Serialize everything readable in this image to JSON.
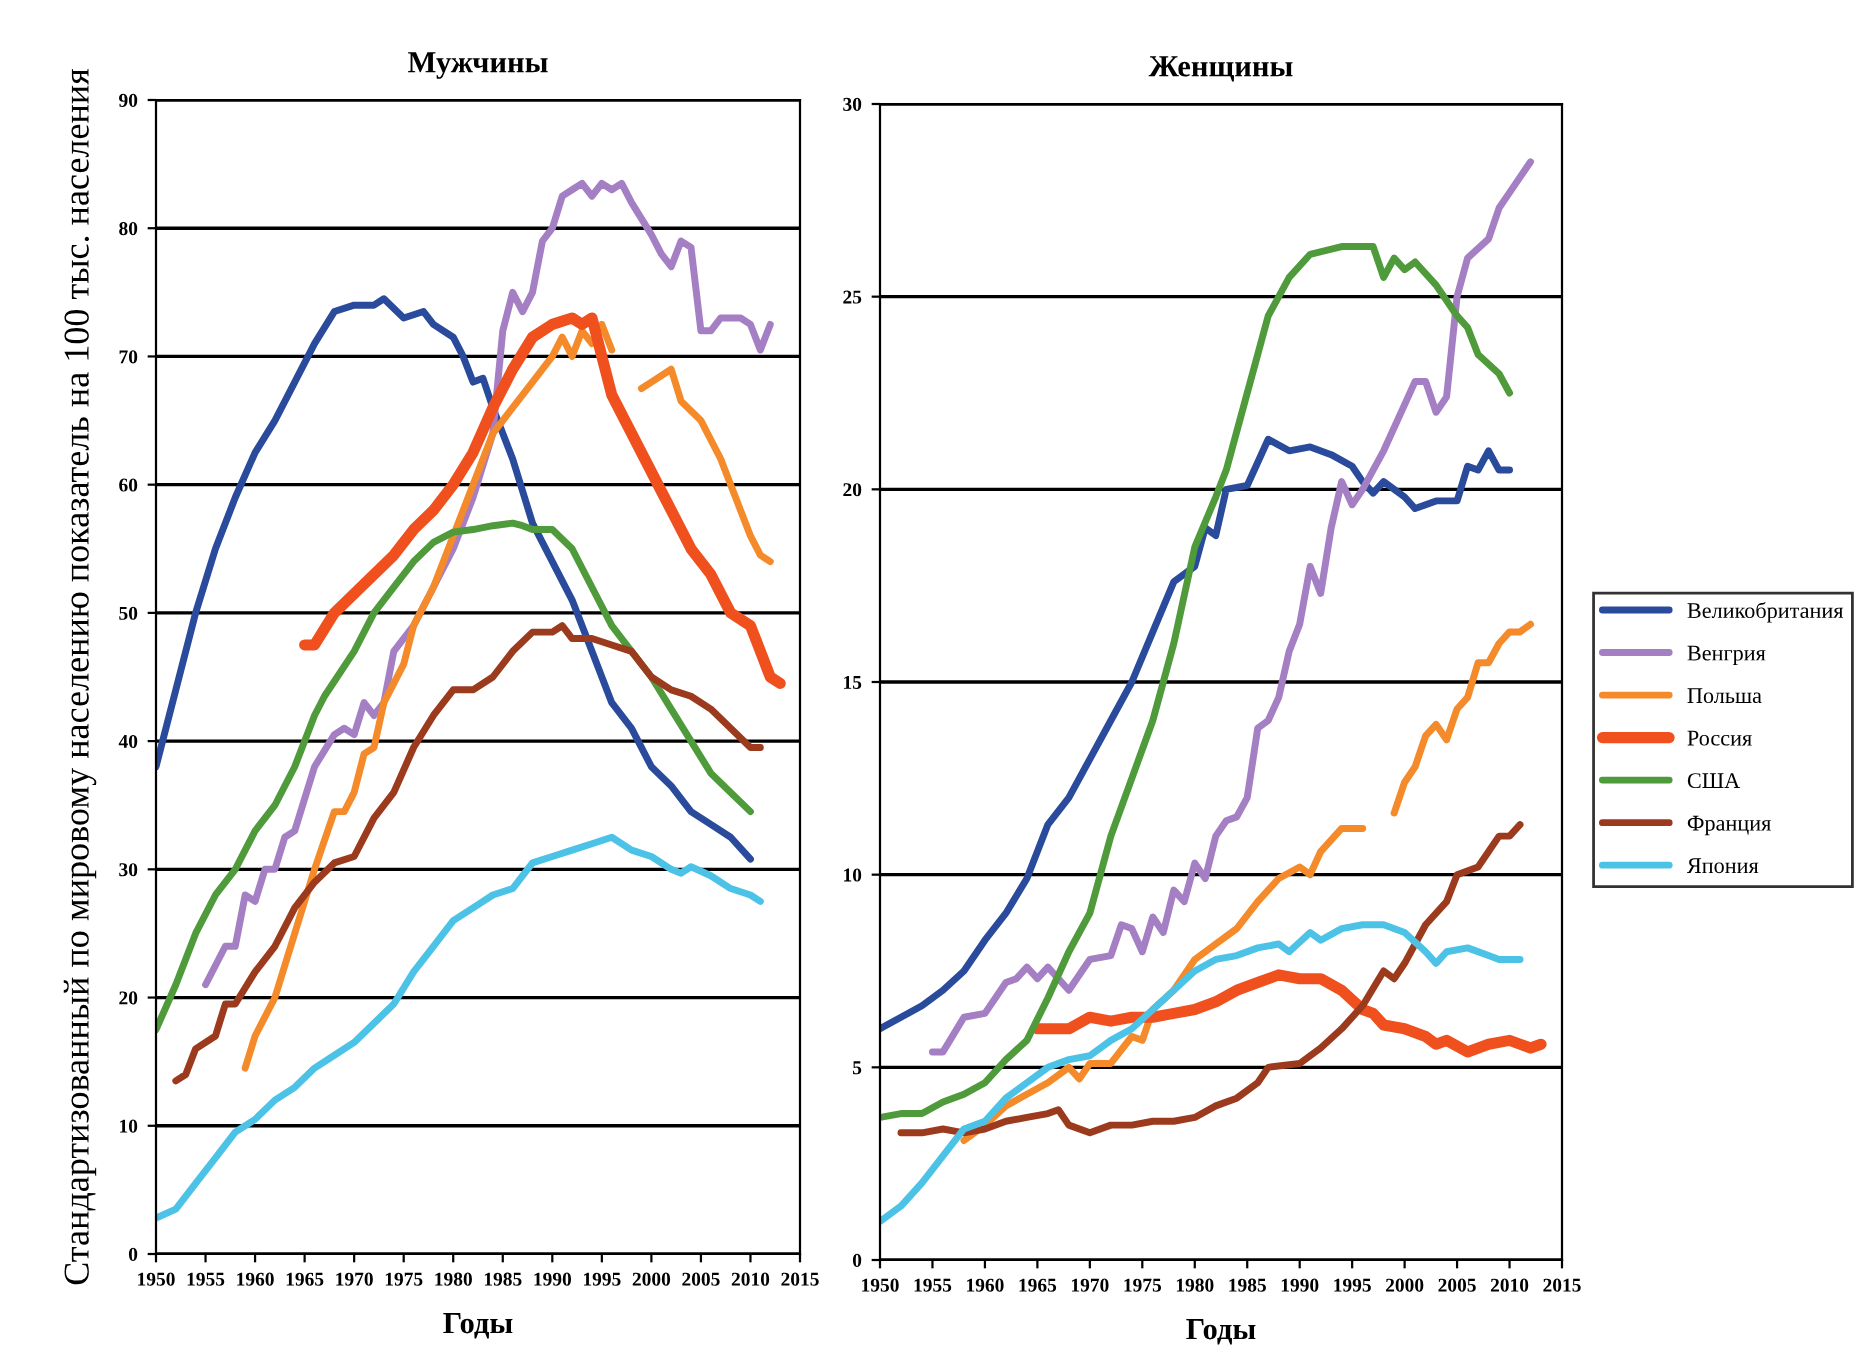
{
  "chart_data": [
    {
      "type": "line",
      "title": "Мужчины",
      "xlabel": "Годы",
      "ylabel": "Стандартизованный по мировому населению показатель на 100 тыс. населения",
      "xlim": [
        1950,
        2015
      ],
      "xticks": [
        1950,
        1955,
        1960,
        1965,
        1970,
        1975,
        1980,
        1985,
        1990,
        1995,
        2000,
        2005,
        2010,
        2015
      ],
      "ylim": [
        0,
        90
      ],
      "yticks": [
        0,
        10,
        20,
        30,
        40,
        50,
        60,
        70,
        80,
        90
      ],
      "grid": "y",
      "legend": false,
      "series": [
        {
          "color": "#2a4a9c",
          "x": [
            1950,
            1952,
            1954,
            1956,
            1958,
            1960,
            1962,
            1964,
            1966,
            1968,
            1970,
            1972,
            1973,
            1975,
            1977,
            1978,
            1980,
            1981,
            1982,
            1983,
            1984,
            1986,
            1988,
            1990,
            1992,
            1994,
            1995,
            1996,
            1998,
            2000,
            2002,
            2004,
            2006,
            2008,
            2010
          ],
          "values": [
            38,
            44,
            50,
            55,
            59,
            62.5,
            65,
            68,
            71,
            73.5,
            74,
            74,
            74.5,
            73,
            73.5,
            72.5,
            71.5,
            70,
            68,
            68.3,
            66,
            62,
            57,
            54,
            51,
            47,
            45,
            43,
            41,
            38,
            36.5,
            34.5,
            33.5,
            32.5,
            30.8
          ]
        },
        {
          "color": "#a57fc4",
          "x": [
            1955,
            1957,
            1958,
            1959,
            1960,
            1961,
            1962,
            1963,
            1964,
            1966,
            1968,
            1969,
            1970,
            1971,
            1972,
            1973,
            1974,
            1976,
            1978,
            1980,
            1982,
            1984,
            1985,
            1986,
            1987,
            1988,
            1989,
            1990,
            1991,
            1992,
            1993,
            1994,
            1995,
            1996,
            1997,
            1998,
            2000,
            2001,
            2002,
            2003,
            2004,
            2005,
            2006,
            2007,
            2009,
            2010,
            2011,
            2012
          ],
          "values": [
            21,
            24,
            24,
            28,
            27.5,
            30,
            30,
            32.5,
            33,
            38,
            40.5,
            41,
            40.5,
            43,
            42,
            43,
            47,
            49,
            52,
            55,
            59,
            64,
            72,
            75,
            73.5,
            75,
            79,
            80,
            82.5,
            83,
            83.5,
            82.5,
            83.5,
            83,
            83.5,
            82,
            79.5,
            78,
            77,
            79,
            78.5,
            72,
            72,
            73,
            73,
            72.5,
            70.5,
            72.5
          ]
        },
        {
          "color": "#f58a2a",
          "x": [
            1959,
            1960,
            1962,
            1964,
            1966,
            1968,
            1969,
            1970,
            1971,
            1972,
            1973,
            1975,
            1976,
            1978,
            1980,
            1982,
            1984,
            1986,
            1988,
            1990,
            1991,
            1992,
            1993,
            1994,
            1995,
            1996,
            1997,
            1999,
            2000,
            2002,
            2003,
            2005,
            2007,
            2008,
            2010,
            2011,
            2012
          ],
          "values": [
            14.5,
            17,
            20,
            25,
            30,
            34.5,
            34.5,
            36,
            39,
            39.5,
            43,
            46,
            49,
            52,
            56,
            60,
            64,
            66,
            68,
            70,
            71.5,
            70,
            72,
            71,
            72.5,
            70.5,
            null,
            67.5,
            68,
            69,
            66.5,
            65,
            62,
            60,
            56,
            54.5,
            54
          ]
        },
        {
          "color": "#f0501e",
          "x": [
            1965,
            1966,
            1968,
            1970,
            1972,
            1974,
            1976,
            1978,
            1980,
            1982,
            1984,
            1986,
            1988,
            1990,
            1992,
            1993,
            1994,
            1996,
            1998,
            2000,
            2002,
            2004,
            2006,
            2008,
            2010,
            2011,
            2012,
            2013
          ],
          "values": [
            47.5,
            47.5,
            50,
            51.5,
            53,
            54.5,
            56.5,
            58,
            60,
            62.5,
            66,
            69,
            71.5,
            72.5,
            73,
            72.5,
            73,
            67,
            64,
            61,
            58,
            55,
            53,
            50,
            49,
            47,
            45,
            44.5
          ]
        },
        {
          "color": "#4f9a3a",
          "x": [
            1950,
            1952,
            1954,
            1956,
            1958,
            1960,
            1962,
            1964,
            1966,
            1967,
            1970,
            1972,
            1974,
            1976,
            1978,
            1980,
            1982,
            1984,
            1986,
            1987,
            1988,
            1990,
            1992,
            1994,
            1996,
            1998,
            2000,
            2002,
            2004,
            2006,
            2008,
            2010
          ],
          "values": [
            17.5,
            21,
            25,
            28,
            30,
            33,
            35,
            38,
            42,
            43.5,
            47,
            50,
            52,
            54,
            55.5,
            56.3,
            56.5,
            56.8,
            57,
            56.8,
            56.5,
            56.5,
            55,
            52,
            49,
            47,
            45,
            42.5,
            40,
            37.5,
            36,
            34.5
          ]
        },
        {
          "color": "#9c3a1e",
          "x": [
            1952,
            1953,
            1954,
            1956,
            1957,
            1958,
            1960,
            1962,
            1964,
            1966,
            1968,
            1970,
            1972,
            1974,
            1976,
            1978,
            1980,
            1982,
            1984,
            1986,
            1988,
            1990,
            1991,
            1992,
            1994,
            1996,
            1998,
            2000,
            2002,
            2004,
            2006,
            2008,
            2010,
            2011
          ],
          "values": [
            13.5,
            14,
            16,
            17,
            19.5,
            19.5,
            22,
            24,
            27,
            29,
            30.5,
            31,
            34,
            36,
            39.5,
            42,
            44,
            44,
            45,
            47,
            48.5,
            48.5,
            49,
            48,
            48,
            47.5,
            47,
            45,
            44,
            43.5,
            42.5,
            41,
            39.5,
            39.5
          ]
        },
        {
          "color": "#4cc3e6",
          "x": [
            1950,
            1952,
            1954,
            1956,
            1958,
            1960,
            1962,
            1964,
            1966,
            1968,
            1970,
            1972,
            1974,
            1976,
            1978,
            1980,
            1982,
            1984,
            1986,
            1988,
            1990,
            1992,
            1994,
            1996,
            1998,
            2000,
            2002,
            2003,
            2004,
            2006,
            2008,
            2010,
            2011
          ],
          "values": [
            2.8,
            3.5,
            5.5,
            7.5,
            9.5,
            10.5,
            12,
            13,
            14.5,
            15.5,
            16.5,
            18,
            19.5,
            22,
            24,
            26,
            27,
            28,
            28.5,
            30.5,
            31,
            31.5,
            32,
            32.5,
            31.5,
            31,
            30,
            29.7,
            30.2,
            29.5,
            28.5,
            28,
            27.5
          ]
        }
      ]
    },
    {
      "type": "line",
      "title": "Женщины",
      "xlabel": "Годы",
      "xlim": [
        1950,
        2015
      ],
      "xticks": [
        1950,
        1955,
        1960,
        1965,
        1970,
        1975,
        1980,
        1985,
        1990,
        1995,
        2000,
        2005,
        2010,
        2015
      ],
      "ylim": [
        0,
        30
      ],
      "yticks": [
        0,
        5,
        10,
        15,
        20,
        25,
        30
      ],
      "grid": "y",
      "legend": "right",
      "series": [
        {
          "name": "Великобритания",
          "color": "#2a4a9c",
          "x": [
            1950,
            1952,
            1954,
            1956,
            1958,
            1960,
            1962,
            1964,
            1966,
            1968,
            1970,
            1972,
            1974,
            1976,
            1978,
            1980,
            1981,
            1982,
            1983,
            1985,
            1987,
            1989,
            1991,
            1993,
            1995,
            1996,
            1997,
            1998,
            2000,
            2001,
            2003,
            2005,
            2006,
            2007,
            2008,
            2009,
            2010
          ],
          "values": [
            6,
            6.3,
            6.6,
            7,
            7.5,
            8.3,
            9,
            9.9,
            11.3,
            12,
            13,
            14,
            15,
            16.3,
            17.6,
            18,
            19,
            18.8,
            20,
            20.1,
            21.3,
            21,
            21.1,
            20.9,
            20.6,
            20.2,
            19.9,
            20.2,
            19.8,
            19.5,
            19.7,
            19.7,
            20.6,
            20.5,
            21,
            20.5,
            20.5
          ]
        },
        {
          "name": "Венгрия",
          "color": "#a57fc4",
          "x": [
            1955,
            1956,
            1958,
            1960,
            1962,
            1963,
            1964,
            1965,
            1966,
            1968,
            1970,
            1972,
            1973,
            1974,
            1975,
            1976,
            1977,
            1978,
            1979,
            1980,
            1981,
            1982,
            1983,
            1984,
            1985,
            1986,
            1987,
            1988,
            1989,
            1990,
            1991,
            1992,
            1993,
            1994,
            1995,
            1996,
            1998,
            2000,
            2001,
            2002,
            2003,
            2004,
            2005,
            2006,
            2008,
            2009,
            2010,
            2012
          ],
          "values": [
            5.4,
            5.4,
            6.3,
            6.4,
            7.2,
            7.3,
            7.6,
            7.3,
            7.6,
            7,
            7.8,
            7.9,
            8.7,
            8.6,
            8,
            8.9,
            8.5,
            9.6,
            9.3,
            10.3,
            9.9,
            11,
            11.4,
            11.5,
            12,
            13.8,
            14,
            14.6,
            15.8,
            16.5,
            18,
            17.3,
            19,
            20.2,
            19.6,
            20,
            21,
            22.2,
            22.8,
            22.8,
            22,
            22.4,
            25,
            26,
            26.5,
            27.3,
            27.7,
            28.5
          ]
        },
        {
          "name": "Польша",
          "color": "#f58a2a",
          "x": [
            1958,
            1960,
            1962,
            1964,
            1966,
            1968,
            1969,
            1970,
            1972,
            1974,
            1975,
            1976,
            1978,
            1980,
            1982,
            1984,
            1986,
            1988,
            1990,
            1991,
            1992,
            1994,
            1996,
            1997,
            1999,
            2000,
            2001,
            2002,
            2003,
            2004,
            2005,
            2006,
            2007,
            2008,
            2009,
            2010,
            2011,
            2012
          ],
          "values": [
            3.1,
            3.5,
            4,
            4.3,
            4.6,
            5,
            4.7,
            5.1,
            5.1,
            5.8,
            5.7,
            6.5,
            7,
            7.8,
            8.2,
            8.6,
            9.3,
            9.9,
            10.2,
            10,
            10.6,
            11.2,
            11.2,
            null,
            11.6,
            12.4,
            12.8,
            13.6,
            13.9,
            13.5,
            14.3,
            14.6,
            15.5,
            15.5,
            16,
            16.3,
            16.3,
            16.5
          ]
        },
        {
          "name": "Россия",
          "color": "#f0501e",
          "x": [
            1965,
            1968,
            1970,
            1972,
            1974,
            1976,
            1978,
            1980,
            1982,
            1984,
            1986,
            1988,
            1990,
            1992,
            1994,
            1996,
            1997,
            1998,
            2000,
            2002,
            2003,
            2004,
            2006,
            2008,
            2010,
            2012,
            2013
          ],
          "values": [
            6,
            6,
            6.3,
            6.2,
            6.3,
            6.3,
            6.4,
            6.5,
            6.7,
            7,
            7.2,
            7.4,
            7.3,
            7.3,
            7,
            6.5,
            6.4,
            6.1,
            6,
            5.8,
            5.6,
            5.7,
            5.4,
            5.6,
            5.7,
            5.5,
            5.6
          ]
        },
        {
          "name": "США",
          "color": "#4f9a3a",
          "x": [
            1950,
            1952,
            1954,
            1956,
            1958,
            1960,
            1962,
            1964,
            1966,
            1968,
            1970,
            1972,
            1974,
            1976,
            1977,
            1978,
            1980,
            1982,
            1983,
            1985,
            1987,
            1989,
            1991,
            1994,
            1997,
            1998,
            1999,
            2000,
            2001,
            2003,
            2005,
            2006,
            2007,
            2009,
            2010
          ],
          "values": [
            3.7,
            3.8,
            3.8,
            4.1,
            4.3,
            4.6,
            5.2,
            5.7,
            6.8,
            8,
            9,
            11,
            12.5,
            14,
            15,
            16,
            18.5,
            19.8,
            20.5,
            22.5,
            24.5,
            25.5,
            26.1,
            26.3,
            26.3,
            25.5,
            26,
            25.7,
            25.9,
            25.3,
            24.5,
            24.2,
            23.5,
            23,
            22.5
          ]
        },
        {
          "name": "Франция",
          "color": "#9c3a1e",
          "x": [
            1952,
            1954,
            1956,
            1958,
            1960,
            1962,
            1964,
            1966,
            1967,
            1968,
            1970,
            1972,
            1974,
            1976,
            1978,
            1980,
            1982,
            1984,
            1986,
            1987,
            1990,
            1992,
            1994,
            1996,
            1998,
            1999,
            2000,
            2002,
            2004,
            2005,
            2007,
            2009,
            2010,
            2011
          ],
          "values": [
            3.3,
            3.3,
            3.4,
            3.3,
            3.4,
            3.6,
            3.7,
            3.8,
            3.9,
            3.5,
            3.3,
            3.5,
            3.5,
            3.6,
            3.6,
            3.7,
            4,
            4.2,
            4.6,
            5,
            5.1,
            5.5,
            6,
            6.6,
            7.5,
            7.3,
            7.7,
            8.7,
            9.3,
            10,
            10.2,
            11,
            11,
            11.3
          ]
        },
        {
          "name": "Япония",
          "color": "#4cc3e6",
          "x": [
            1950,
            1952,
            1954,
            1956,
            1958,
            1960,
            1962,
            1964,
            1966,
            1968,
            1970,
            1972,
            1974,
            1976,
            1978,
            1980,
            1982,
            1984,
            1986,
            1988,
            1989,
            1991,
            1992,
            1994,
            1996,
            1998,
            2000,
            2002,
            2003,
            2004,
            2006,
            2008,
            2009,
            2011
          ],
          "values": [
            1,
            1.4,
            2,
            2.7,
            3.4,
            3.6,
            4.2,
            4.6,
            5,
            5.2,
            5.3,
            5.7,
            6,
            6.5,
            7,
            7.5,
            7.8,
            7.9,
            8.1,
            8.2,
            8,
            8.5,
            8.3,
            8.6,
            8.7,
            8.7,
            8.5,
            8,
            7.7,
            8,
            8.1,
            7.9,
            7.8,
            7.8
          ]
        }
      ]
    }
  ]
}
